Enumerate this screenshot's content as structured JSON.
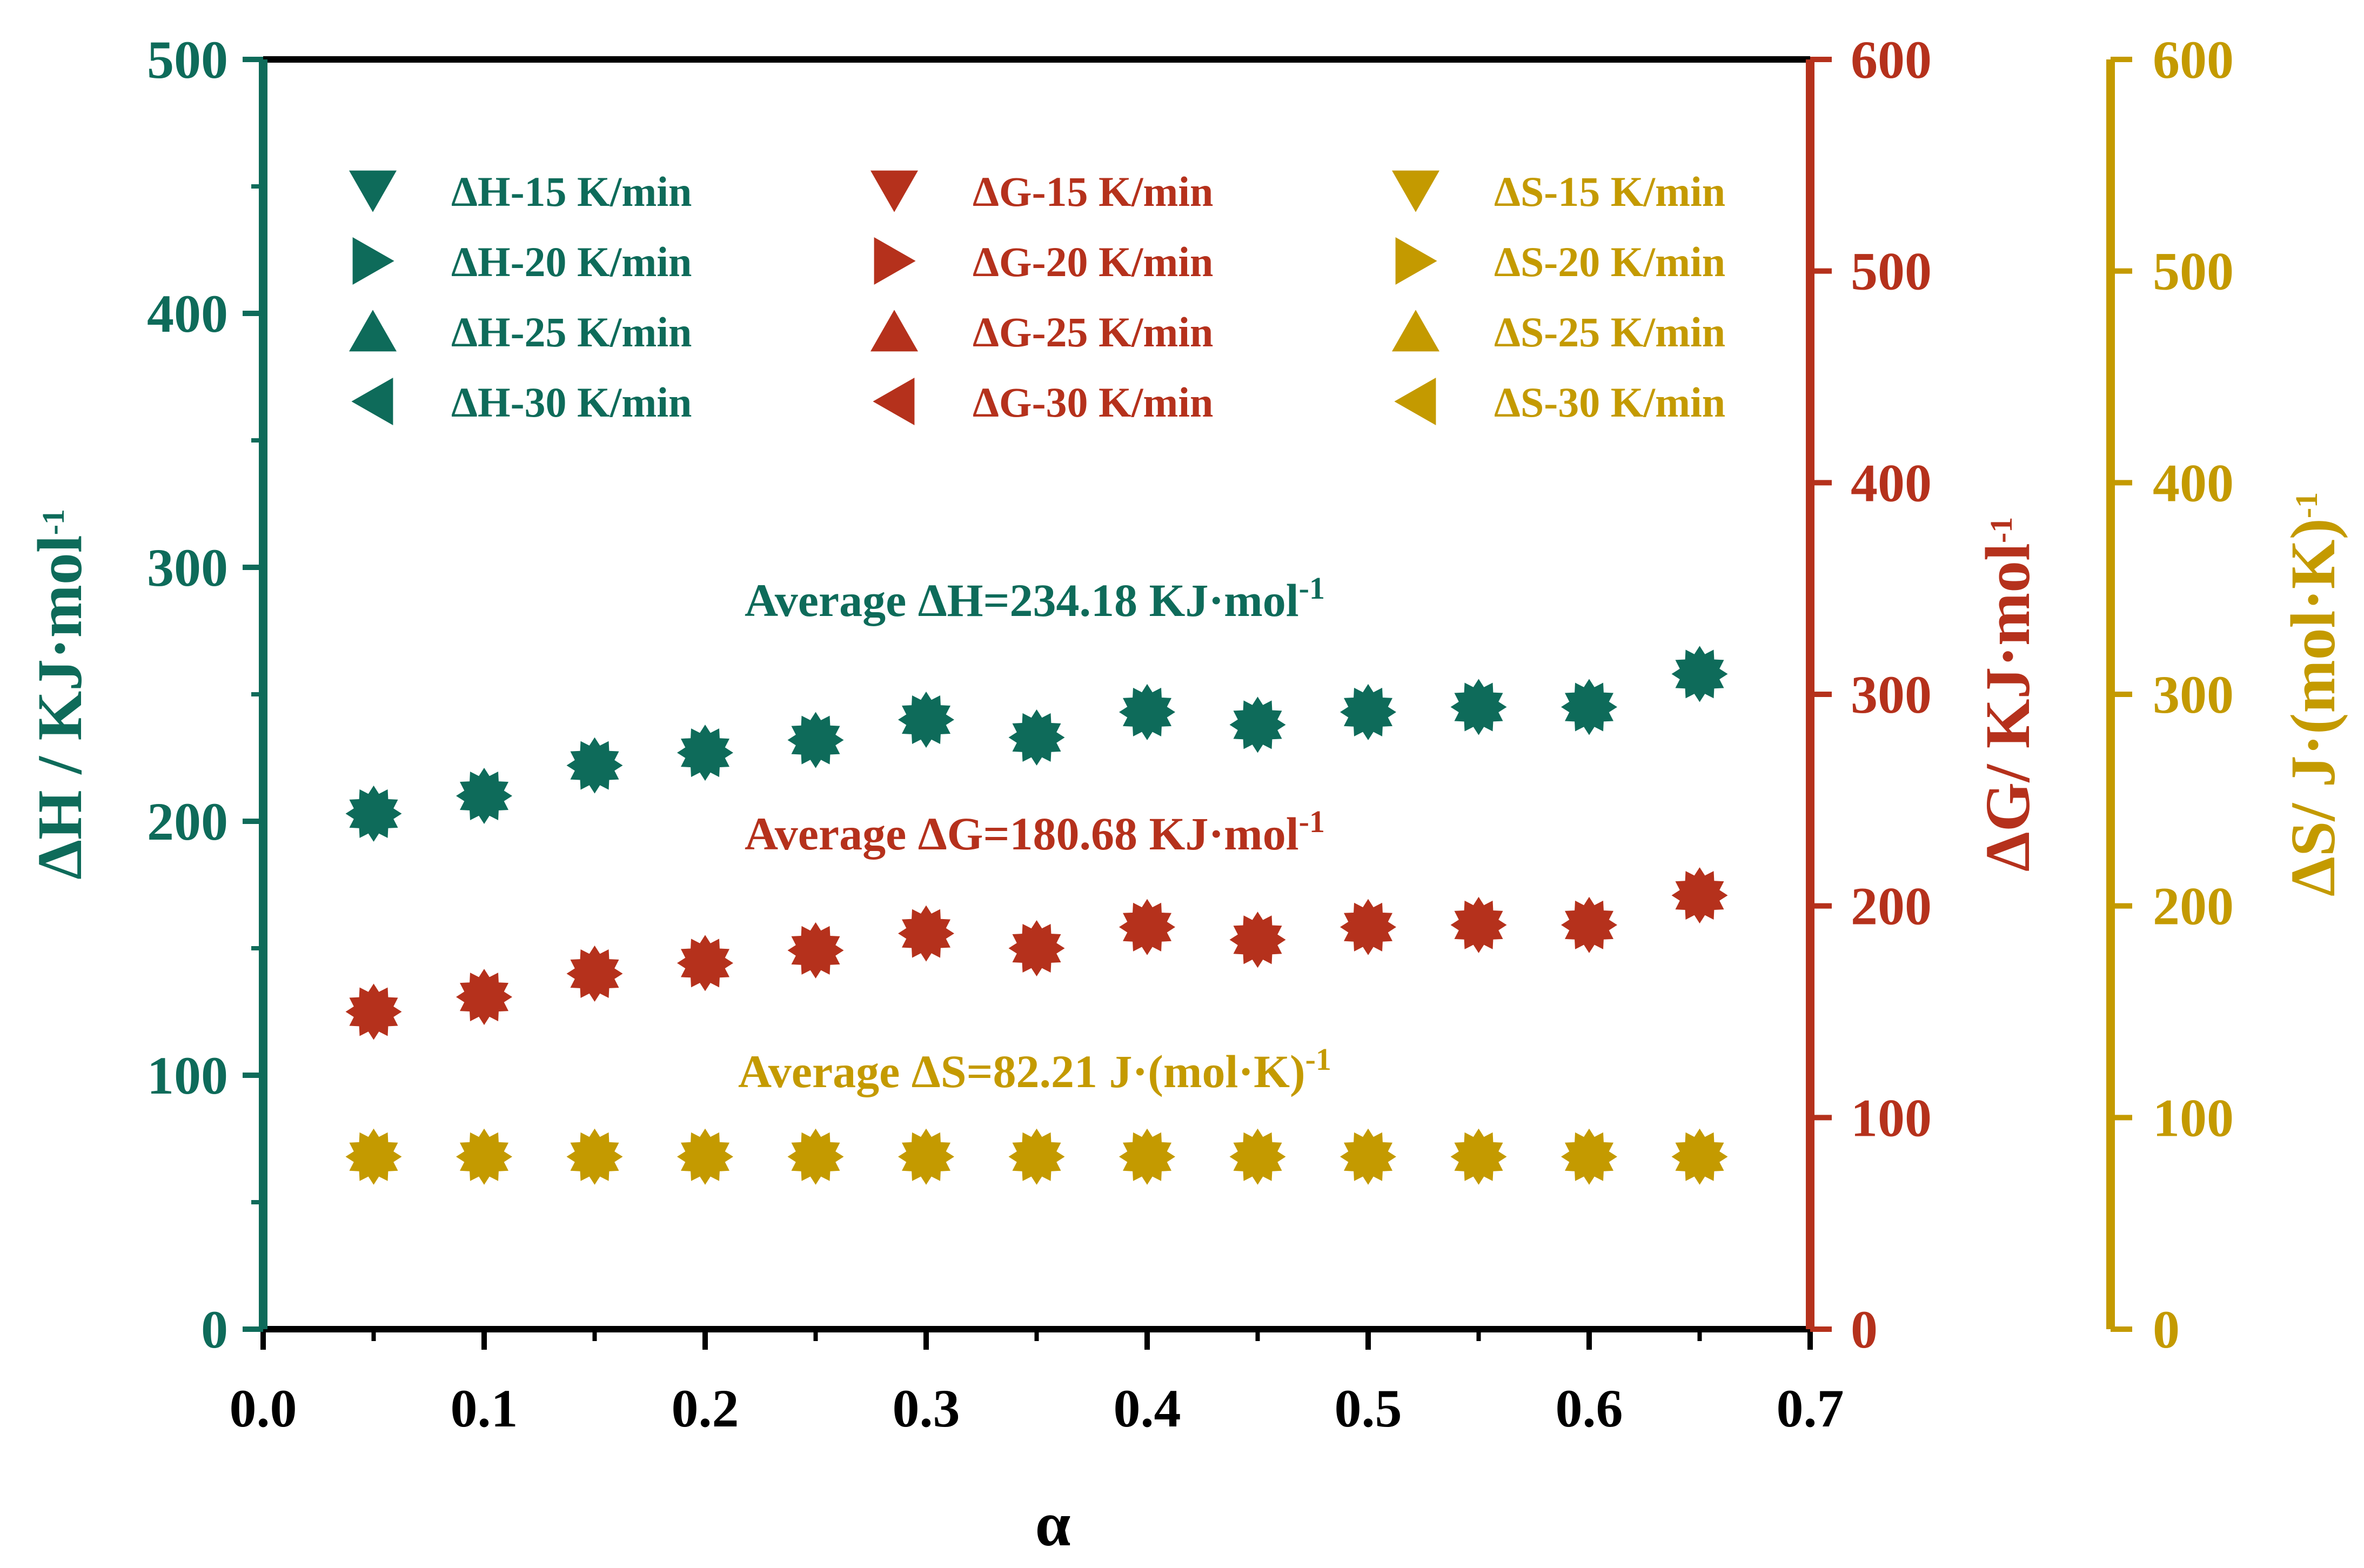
{
  "chart_data": {
    "type": "scatter",
    "x": [
      0.05,
      0.1,
      0.15,
      0.2,
      0.25,
      0.3,
      0.35,
      0.4,
      0.45,
      0.5,
      0.55,
      0.6,
      0.65
    ],
    "xlabel": "α",
    "xlim": [
      0.0,
      0.7
    ],
    "xticks": [
      "0.0",
      "0.1",
      "0.2",
      "0.3",
      "0.4",
      "0.5",
      "0.6",
      "0.7"
    ],
    "xtick_values": [
      0.0,
      0.1,
      0.2,
      0.3,
      0.4,
      0.5,
      0.6,
      0.7
    ],
    "axes": {
      "left": {
        "label": "ΔH / KJ·mol",
        "label_sup": "-1",
        "ylim": [
          0,
          500
        ],
        "ticks": [
          "0",
          "100",
          "200",
          "300",
          "400",
          "500"
        ],
        "tick_values": [
          0,
          100,
          200,
          300,
          400,
          500
        ],
        "color": "#0E6B5A"
      },
      "right1": {
        "label": "ΔG/ KJ·mol",
        "label_sup": "-1",
        "ylim": [
          0,
          600
        ],
        "ticks": [
          "0",
          "100",
          "200",
          "300",
          "400",
          "500",
          "600"
        ],
        "tick_values": [
          0,
          100,
          200,
          300,
          400,
          500,
          600
        ],
        "color": "#B5311C"
      },
      "right2": {
        "label": "ΔS/ J·(mol·K)",
        "label_sup": "-1",
        "ylim": [
          0,
          600
        ],
        "ticks": [
          "0",
          "100",
          "200",
          "300",
          "400",
          "500",
          "600"
        ],
        "tick_values": [
          0,
          100,
          200,
          300,
          400,
          500,
          600
        ],
        "color": "#C49A00"
      }
    },
    "series": [
      {
        "name": "ΔH",
        "axis": "left",
        "color": "#0E6B5A",
        "values": [
          203,
          210,
          222,
          227,
          232,
          240,
          233,
          243,
          238,
          243,
          245,
          245,
          258
        ]
      },
      {
        "name": "ΔG",
        "axis": "right1",
        "color": "#B5311C",
        "values": [
          150,
          157,
          168,
          173,
          179,
          187,
          180,
          190,
          184,
          190,
          191,
          191,
          205
        ]
      },
      {
        "name": "ΔS",
        "axis": "right2",
        "color": "#C49A00",
        "values": [
          81.5,
          81.5,
          81.5,
          81.5,
          81.5,
          81.5,
          81.5,
          81.5,
          81.5,
          81.5,
          81.5,
          81.5,
          81.5
        ]
      }
    ],
    "legend": {
      "placement": "top",
      "columns": [
        {
          "color": "#0E6B5A",
          "entries": [
            {
              "marker": "down",
              "label": "ΔH-15 K/min"
            },
            {
              "marker": "right",
              "label": "ΔH-20 K/min"
            },
            {
              "marker": "up",
              "label": "ΔH-25 K/min"
            },
            {
              "marker": "left",
              "label": "ΔH-30 K/min"
            }
          ]
        },
        {
          "color": "#B5311C",
          "entries": [
            {
              "marker": "down",
              "label": "ΔG-15 K/min"
            },
            {
              "marker": "right",
              "label": "ΔG-20 K/min"
            },
            {
              "marker": "up",
              "label": "ΔG-25 K/min"
            },
            {
              "marker": "left",
              "label": "ΔG-30 K/min"
            }
          ]
        },
        {
          "color": "#C49A00",
          "entries": [
            {
              "marker": "down",
              "label": "ΔS-15 K/min"
            },
            {
              "marker": "right",
              "label": "ΔS-20 K/min"
            },
            {
              "marker": "up",
              "label": "ΔS-25 K/min"
            },
            {
              "marker": "left",
              "label": "ΔS-30 K/min"
            }
          ]
        }
      ]
    },
    "annotations": [
      {
        "name": "average-dh",
        "text": "Average ΔH=234.18 KJ·mol",
        "sup": "-1",
        "color": "#0E6B5A"
      },
      {
        "name": "average-dg",
        "text": "Average ΔG=180.68 KJ·mol",
        "sup": "-1",
        "color": "#B5311C"
      },
      {
        "name": "average-ds",
        "text": "Average ΔS=82.21 J·(mol·K)",
        "sup": "-1",
        "color": "#C49A00"
      }
    ]
  }
}
